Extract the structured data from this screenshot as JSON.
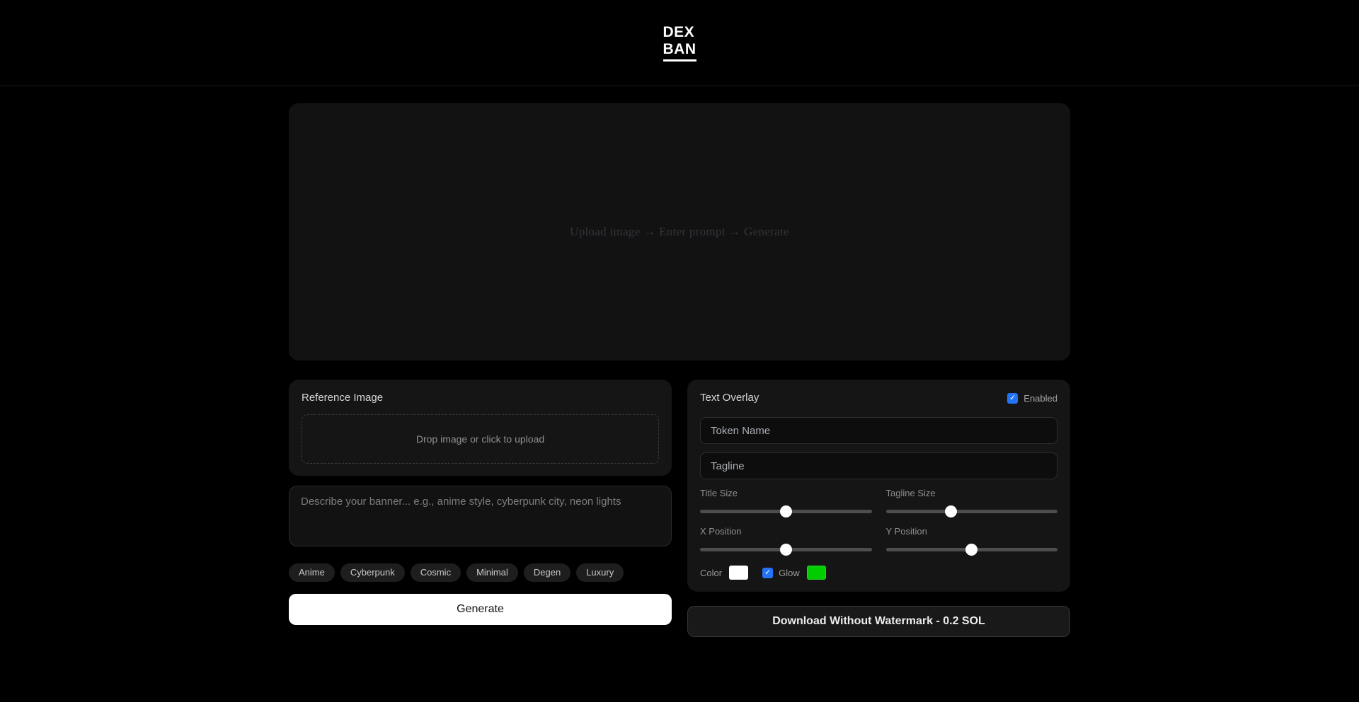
{
  "header": {
    "logo_line1": "DEX",
    "logo_line2": "BAN"
  },
  "preview": {
    "hint": "Upload image → Enter prompt → Generate"
  },
  "reference": {
    "title": "Reference Image",
    "dropzone_text": "Drop image or click to upload"
  },
  "prompt": {
    "placeholder": "Describe your banner... e.g., anime style, cyberpunk city, neon lights"
  },
  "style_chips": [
    "Anime",
    "Cyberpunk",
    "Cosmic",
    "Minimal",
    "Degen",
    "Luxury"
  ],
  "generate_label": "Generate",
  "text_overlay": {
    "title": "Text Overlay",
    "enabled_label": "Enabled",
    "enabled": true,
    "token_name_placeholder": "Token Name",
    "tagline_placeholder": "Tagline",
    "sliders": [
      {
        "label": "Title Size",
        "value_pct": 50
      },
      {
        "label": "Tagline Size",
        "value_pct": 38
      },
      {
        "label": "X Position",
        "value_pct": 50
      },
      {
        "label": "Y Position",
        "value_pct": 50
      }
    ],
    "color_label": "Color",
    "color_value": "#ffffff",
    "glow_label": "Glow",
    "glow_enabled": true,
    "glow_color": "#00cc00"
  },
  "download_label": "Download Without Watermark - 0.2 SOL",
  "colors": {
    "accent_blue": "#2472f5",
    "checkmark": "✓"
  }
}
